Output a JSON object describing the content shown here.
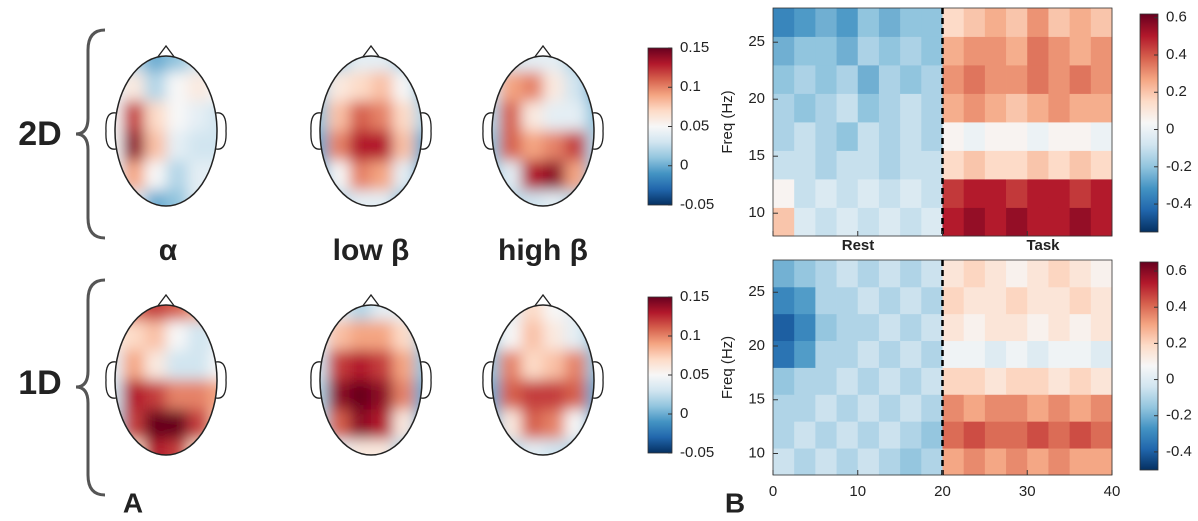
{
  "panel_labels": [
    "A",
    "B"
  ],
  "chart_data": [
    {
      "type": "topomap",
      "row_labels": [
        "2D",
        "1D"
      ],
      "column_labels": [
        "α",
        "low β",
        "high β"
      ],
      "clim": [
        -0.05,
        0.15
      ],
      "cticks": [
        -0.05,
        0,
        0.05,
        0.1,
        0.15
      ],
      "maps": [
        {
          "values": [
            [
              0.03,
              0.02,
              0.0,
              0.01,
              0.03,
              0.04
            ],
            [
              0.04,
              0.06,
              0.02,
              0.05,
              0.06,
              0.05
            ],
            [
              0.05,
              0.12,
              0.07,
              0.05,
              0.04,
              0.03
            ],
            [
              0.05,
              0.14,
              0.08,
              0.04,
              0.03,
              0.03
            ],
            [
              0.04,
              0.09,
              0.05,
              0.02,
              0.04,
              0.04
            ],
            [
              0.04,
              0.04,
              0.0,
              0.01,
              0.04,
              0.04
            ]
          ]
        },
        {
          "values": [
            [
              0.0,
              0.02,
              0.04,
              0.04,
              0.02,
              0.0
            ],
            [
              0.02,
              0.06,
              0.07,
              0.08,
              0.05,
              0.01
            ],
            [
              0.01,
              0.08,
              0.11,
              0.1,
              0.07,
              0.02
            ],
            [
              0.0,
              0.1,
              0.13,
              0.13,
              0.08,
              0.0
            ],
            [
              0.0,
              0.05,
              0.1,
              0.09,
              0.04,
              0.0
            ],
            [
              0.0,
              0.02,
              0.04,
              0.04,
              0.01,
              0.0
            ]
          ]
        },
        {
          "values": [
            [
              0.02,
              0.03,
              0.04,
              0.04,
              0.02,
              0.0
            ],
            [
              0.03,
              0.09,
              0.1,
              0.06,
              0.03,
              0.0
            ],
            [
              0.02,
              0.11,
              0.06,
              0.04,
              0.04,
              0.01
            ],
            [
              0.01,
              0.11,
              0.09,
              0.1,
              0.12,
              0.02
            ],
            [
              0.01,
              0.04,
              0.13,
              0.14,
              0.09,
              0.01
            ],
            [
              0.01,
              0.02,
              0.03,
              0.04,
              0.02,
              0.01
            ]
          ]
        },
        {
          "values": [
            [
              0.1,
              0.11,
              0.12,
              0.11,
              0.09,
              0.08
            ],
            [
              0.06,
              0.07,
              0.08,
              0.05,
              0.03,
              0.04
            ],
            [
              0.04,
              0.09,
              0.06,
              0.03,
              0.03,
              0.05
            ],
            [
              0.03,
              0.13,
              0.12,
              0.1,
              0.1,
              0.09
            ],
            [
              0.02,
              0.12,
              0.15,
              0.15,
              0.12,
              0.08
            ],
            [
              0.02,
              0.07,
              0.13,
              0.12,
              0.07,
              0.04
            ]
          ]
        },
        {
          "values": [
            [
              0.03,
              0.04,
              0.02,
              0.04,
              0.04,
              0.02
            ],
            [
              0.04,
              0.08,
              0.09,
              0.09,
              0.07,
              0.02
            ],
            [
              0.03,
              0.12,
              0.13,
              0.12,
              0.09,
              0.01
            ],
            [
              0.02,
              0.14,
              0.15,
              0.14,
              0.1,
              0.0
            ],
            [
              0.02,
              0.11,
              0.14,
              0.13,
              0.06,
              0.0
            ],
            [
              0.02,
              0.04,
              0.06,
              0.06,
              0.02,
              0.0
            ]
          ]
        },
        {
          "values": [
            [
              0.03,
              0.04,
              0.07,
              0.05,
              0.04,
              0.02
            ],
            [
              0.02,
              0.05,
              0.08,
              0.06,
              0.04,
              0.01
            ],
            [
              0.01,
              0.1,
              0.07,
              0.08,
              0.1,
              0.01
            ],
            [
              0.0,
              0.11,
              0.12,
              0.12,
              0.11,
              0.0
            ],
            [
              0.0,
              0.06,
              0.11,
              0.1,
              0.05,
              0.0
            ],
            [
              0.01,
              0.02,
              0.04,
              0.03,
              0.02,
              0.01
            ]
          ]
        }
      ]
    },
    {
      "type": "heatmap",
      "ylabel": "Freq (Hz)",
      "annotations": [
        "Rest",
        "Task"
      ],
      "vline": 20,
      "xlim": [
        0,
        40
      ],
      "xticks": [
        0,
        10,
        20,
        30,
        40
      ],
      "ylim": [
        8,
        28
      ],
      "yticks": [
        10,
        15,
        20,
        25
      ],
      "x": [
        0,
        2.5,
        5,
        7.5,
        10,
        12.5,
        15,
        17.5,
        20,
        22.5,
        25,
        27.5,
        30,
        32.5,
        35,
        37.5,
        40
      ],
      "y": [
        8,
        10.5,
        13,
        15.5,
        18,
        20.5,
        23,
        25.5,
        28
      ],
      "cticks": [
        -0.4,
        -0.2,
        0,
        0.2,
        0.4,
        0.6
      ],
      "panels": [
        {
          "clim": [
            -0.55,
            0.62
          ],
          "z": [
            [
              0.2,
              -0.05,
              -0.1,
              -0.05,
              -0.1,
              -0.05,
              -0.1,
              -0.05,
              0.5,
              0.55,
              0.5,
              0.55,
              0.5,
              0.5,
              0.55,
              0.5
            ],
            [
              0.05,
              -0.1,
              -0.05,
              -0.1,
              -0.05,
              -0.1,
              -0.05,
              -0.1,
              0.45,
              0.5,
              0.5,
              0.45,
              0.5,
              0.5,
              0.45,
              0.5
            ],
            [
              -0.1,
              -0.1,
              -0.15,
              -0.1,
              -0.1,
              -0.15,
              -0.1,
              -0.1,
              0.15,
              0.2,
              0.15,
              0.15,
              0.2,
              0.15,
              0.2,
              0.15
            ],
            [
              -0.15,
              -0.1,
              -0.15,
              -0.2,
              -0.1,
              -0.15,
              -0.1,
              -0.15,
              0.05,
              0.0,
              0.05,
              0.05,
              0.0,
              0.05,
              0.05,
              0.0
            ],
            [
              -0.15,
              -0.2,
              -0.15,
              -0.1,
              -0.2,
              -0.15,
              -0.1,
              -0.15,
              0.25,
              0.3,
              0.25,
              0.2,
              0.25,
              0.3,
              0.25,
              0.25
            ],
            [
              -0.2,
              -0.15,
              -0.2,
              -0.15,
              -0.25,
              -0.15,
              -0.2,
              -0.15,
              0.3,
              0.35,
              0.3,
              0.3,
              0.35,
              0.3,
              0.35,
              0.3
            ],
            [
              -0.25,
              -0.2,
              -0.2,
              -0.25,
              -0.15,
              -0.2,
              -0.15,
              -0.2,
              0.25,
              0.3,
              0.3,
              0.25,
              0.35,
              0.3,
              0.25,
              0.3
            ],
            [
              -0.35,
              -0.3,
              -0.25,
              -0.3,
              -0.2,
              -0.25,
              -0.2,
              -0.2,
              0.15,
              0.2,
              0.25,
              0.2,
              0.3,
              0.2,
              0.25,
              0.2
            ]
          ]
        },
        {
          "clim": [
            -0.5,
            0.65
          ],
          "z": [
            [
              -0.05,
              -0.1,
              -0.05,
              -0.1,
              -0.05,
              -0.1,
              -0.15,
              -0.1,
              0.3,
              0.35,
              0.3,
              0.35,
              0.3,
              0.35,
              0.3,
              0.3
            ],
            [
              -0.1,
              -0.05,
              -0.1,
              -0.05,
              -0.1,
              -0.05,
              -0.1,
              -0.15,
              0.4,
              0.45,
              0.4,
              0.4,
              0.45,
              0.4,
              0.45,
              0.4
            ],
            [
              -0.1,
              -0.1,
              -0.05,
              -0.1,
              -0.05,
              -0.1,
              -0.05,
              -0.1,
              0.35,
              0.3,
              0.35,
              0.35,
              0.3,
              0.35,
              0.3,
              0.35
            ],
            [
              -0.15,
              -0.1,
              -0.1,
              -0.05,
              -0.1,
              -0.05,
              -0.1,
              -0.05,
              0.2,
              0.2,
              0.15,
              0.2,
              0.2,
              0.15,
              0.2,
              0.15
            ],
            [
              -0.35,
              -0.25,
              -0.1,
              -0.1,
              -0.05,
              -0.1,
              -0.05,
              -0.1,
              0.05,
              0.05,
              0.0,
              0.05,
              0.0,
              0.05,
              0.05,
              0.0
            ],
            [
              -0.4,
              -0.3,
              -0.15,
              -0.1,
              -0.1,
              -0.05,
              -0.1,
              -0.05,
              0.15,
              0.1,
              0.15,
              0.15,
              0.1,
              0.15,
              0.1,
              0.15
            ],
            [
              -0.3,
              -0.25,
              -0.1,
              -0.1,
              -0.05,
              -0.1,
              -0.05,
              -0.1,
              0.2,
              0.15,
              0.15,
              0.2,
              0.15,
              0.15,
              0.2,
              0.15
            ],
            [
              -0.2,
              -0.15,
              -0.1,
              -0.05,
              -0.1,
              -0.05,
              -0.1,
              -0.05,
              0.15,
              0.2,
              0.15,
              0.1,
              0.15,
              0.2,
              0.15,
              0.1
            ]
          ]
        }
      ]
    }
  ]
}
